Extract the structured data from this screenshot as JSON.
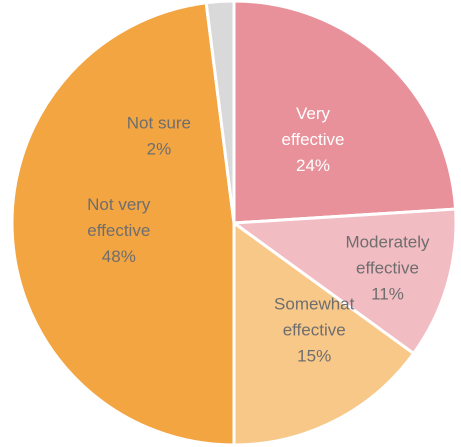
{
  "chart_data": {
    "type": "pie",
    "title": "",
    "start_angle_deg": 0,
    "direction": "clockwise",
    "slices": [
      {
        "lines": [
          "Very",
          "effective",
          "24%"
        ],
        "value": 24,
        "color": "#E8919A",
        "text_color": "#ffffff"
      },
      {
        "lines": [
          "Moderately",
          "effective",
          "11%"
        ],
        "value": 11,
        "color": "#F2BCC3",
        "text_color": "#6e6e6e"
      },
      {
        "lines": [
          "Somewhat",
          "effective",
          "15%"
        ],
        "value": 15,
        "color": "#F8C889",
        "text_color": "#6e6e6e"
      },
      {
        "lines": [
          "Not very",
          "effective",
          "48%"
        ],
        "value": 48,
        "color": "#F3A541",
        "text_color": "#6e6e6e"
      },
      {
        "lines": [
          "Not sure",
          "2%"
        ],
        "value": 2,
        "color": "#D9D9D9",
        "text_color": "#6e6e6e"
      }
    ]
  }
}
